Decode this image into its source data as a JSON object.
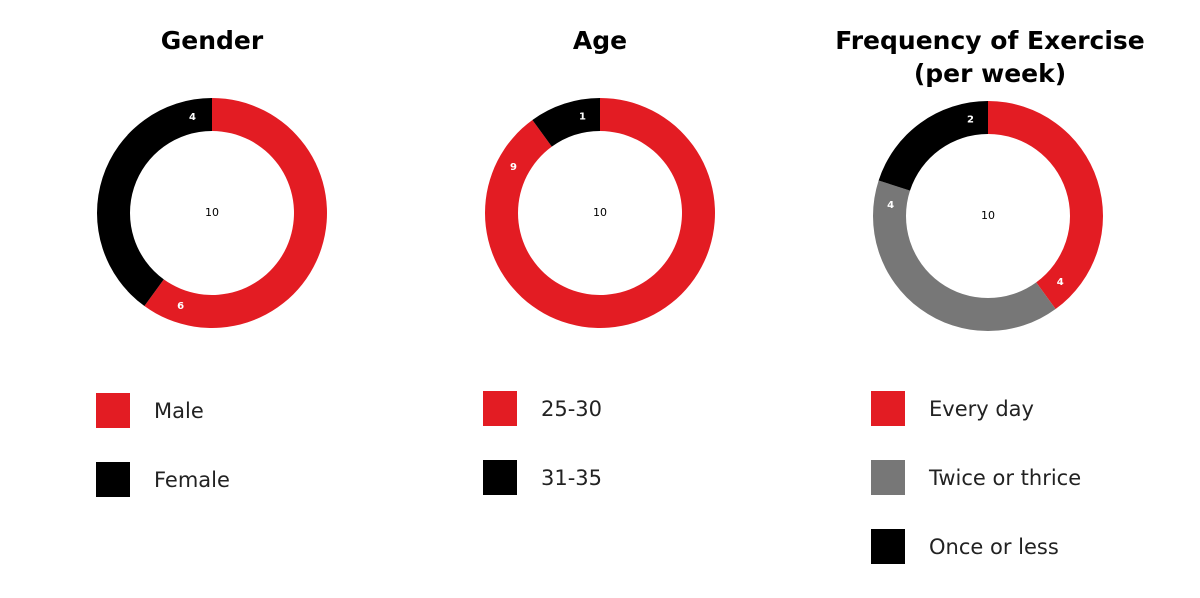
{
  "colors": {
    "red": "#e31c23",
    "black": "#000000",
    "gray": "#777777"
  },
  "chart_data": [
    {
      "type": "pie",
      "donut": true,
      "title": "Gender",
      "total_label": "10",
      "series": [
        {
          "name": "Male",
          "value": 6,
          "color": "#e31c23"
        },
        {
          "name": "Female",
          "value": 4,
          "color": "#000000"
        }
      ]
    },
    {
      "type": "pie",
      "donut": true,
      "title": "Age",
      "total_label": "10",
      "series": [
        {
          "name": "25-30",
          "value": 9,
          "color": "#e31c23"
        },
        {
          "name": "31-35",
          "value": 1,
          "color": "#000000"
        }
      ]
    },
    {
      "type": "pie",
      "donut": true,
      "title": "Frequency of Exercise (per week)",
      "total_label": "10",
      "series": [
        {
          "name": "Every day",
          "value": 4,
          "color": "#e31c23"
        },
        {
          "name": "Twice or thrice",
          "value": 4,
          "color": "#777777"
        },
        {
          "name": "Once or less",
          "value": 2,
          "color": "#000000"
        }
      ]
    }
  ]
}
